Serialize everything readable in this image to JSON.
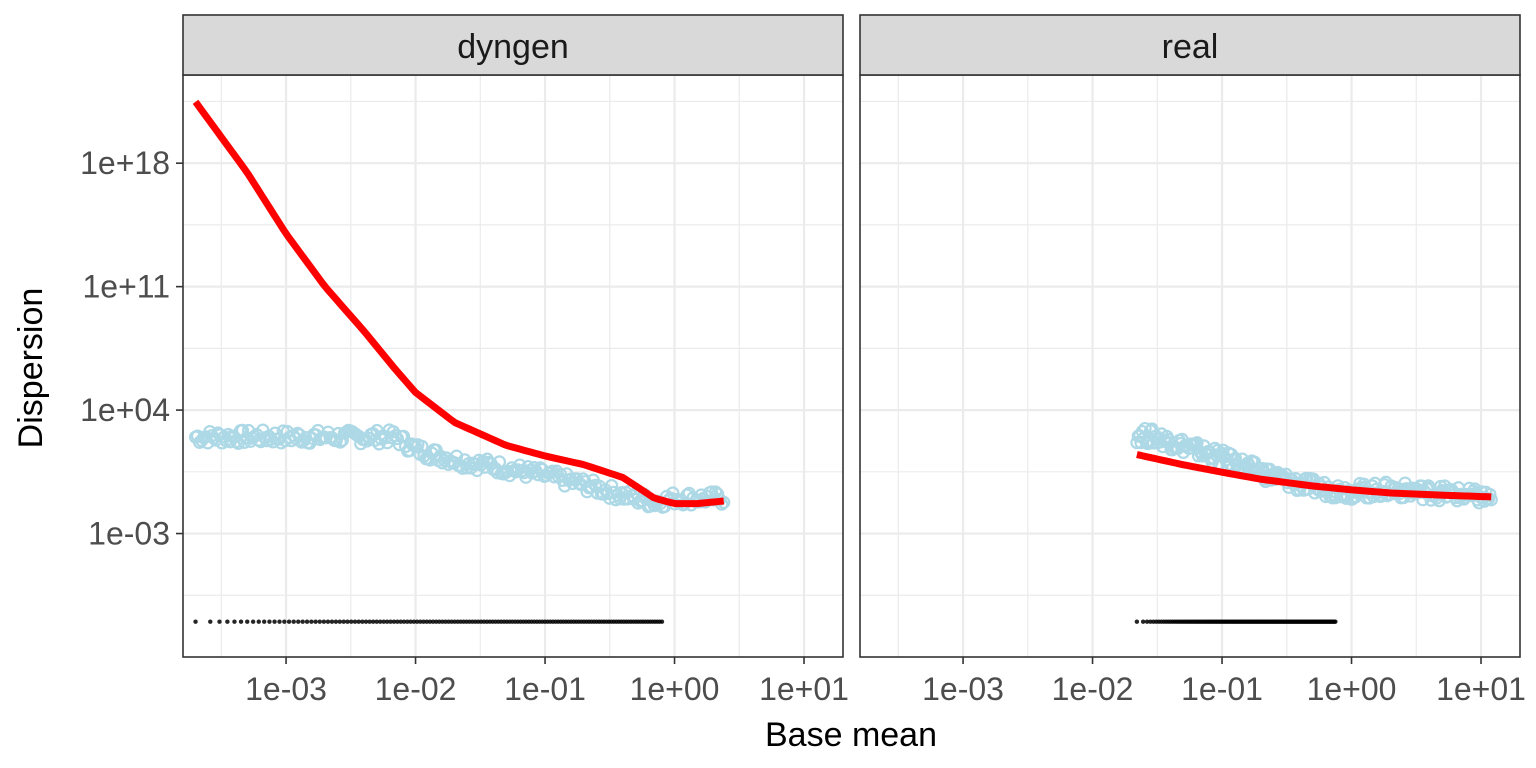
{
  "chart_data": {
    "type": "scatter",
    "xlabel": "Base mean",
    "ylabel": "Dispersion",
    "x_scale": "log10",
    "y_scale": "log10",
    "grid": true,
    "xlim": [
      0.00016,
      20
    ],
    "ylim": [
      1e-10,
      1e+23
    ],
    "x_ticks": [
      {
        "value": 0.001,
        "label": "1e-03"
      },
      {
        "value": 0.01,
        "label": "1e-02"
      },
      {
        "value": 0.1,
        "label": "1e-01"
      },
      {
        "value": 1,
        "label": "1e+00"
      },
      {
        "value": 10,
        "label": "1e+01"
      }
    ],
    "y_ticks": [
      {
        "value": 0.001,
        "label": "1e-03"
      },
      {
        "value": 10000.0,
        "label": "1e+04"
      },
      {
        "value": 100000000000.0,
        "label": "1e+11"
      },
      {
        "value": 1e+18,
        "label": "1e+18"
      }
    ],
    "colors": {
      "gene_estimate": "#add8e6",
      "fitted_trend": "#ff0000",
      "final_estimate": "#000000",
      "strip_bg": "#d9d9d9",
      "grid": "#ebebeb",
      "panel_border": "#333333"
    },
    "panels": [
      {
        "name": "dyngen",
        "xrange": [
          0.0002,
          2.4
        ],
        "points_gene_estimate": [
          {
            "x": 0.0002,
            "y": 300
          },
          {
            "x": 0.0003,
            "y": 300
          },
          {
            "x": 0.0005,
            "y": 300
          },
          {
            "x": 0.0007,
            "y": 300
          },
          {
            "x": 0.001,
            "y": 300
          },
          {
            "x": 0.002,
            "y": 300
          },
          {
            "x": 0.004,
            "y": 300
          },
          {
            "x": 0.007,
            "y": 300
          },
          {
            "x": 0.01,
            "y": 60
          },
          {
            "x": 0.02,
            "y": 15
          },
          {
            "x": 0.05,
            "y": 5
          },
          {
            "x": 0.1,
            "y": 2
          },
          {
            "x": 0.2,
            "y": 0.6
          },
          {
            "x": 0.4,
            "y": 0.15
          },
          {
            "x": 0.7,
            "y": 0.06
          },
          {
            "x": 1.0,
            "y": 0.1
          },
          {
            "x": 1.5,
            "y": 0.1
          },
          {
            "x": 2.4,
            "y": 0.1
          }
        ],
        "fitted_trend": [
          {
            "x": 0.0002,
            "y": 3e+21
          },
          {
            "x": 0.0005,
            "y": 3e+17
          },
          {
            "x": 0.001,
            "y": 100000000000000.0
          },
          {
            "x": 0.002,
            "y": 100000000000.0
          },
          {
            "x": 0.004,
            "y": 300000000.0
          },
          {
            "x": 0.007,
            "y": 2000000.0
          },
          {
            "x": 0.01,
            "y": 100000.0
          },
          {
            "x": 0.02,
            "y": 2000.0
          },
          {
            "x": 0.05,
            "y": 100
          },
          {
            "x": 0.1,
            "y": 25
          },
          {
            "x": 0.2,
            "y": 8
          },
          {
            "x": 0.4,
            "y": 1.5
          },
          {
            "x": 0.7,
            "y": 0.1
          },
          {
            "x": 1.0,
            "y": 0.05
          },
          {
            "x": 1.5,
            "y": 0.05
          },
          {
            "x": 2.4,
            "y": 0.07
          }
        ],
        "final_estimate_y": 1e-08
      },
      {
        "name": "real",
        "xrange": [
          0.022,
          12
        ],
        "points_gene_estimate": [
          {
            "x": 0.022,
            "y": 400
          },
          {
            "x": 0.03,
            "y": 300
          },
          {
            "x": 0.05,
            "y": 100
          },
          {
            "x": 0.1,
            "y": 20
          },
          {
            "x": 0.2,
            "y": 3
          },
          {
            "x": 0.4,
            "y": 0.6
          },
          {
            "x": 0.7,
            "y": 0.3
          },
          {
            "x": 1.0,
            "y": 0.25
          },
          {
            "x": 2.0,
            "y": 0.3
          },
          {
            "x": 5.0,
            "y": 0.2
          },
          {
            "x": 12,
            "y": 0.1
          }
        ],
        "fitted_trend": [
          {
            "x": 0.022,
            "y": 30
          },
          {
            "x": 0.05,
            "y": 8
          },
          {
            "x": 0.1,
            "y": 3
          },
          {
            "x": 0.2,
            "y": 1.2
          },
          {
            "x": 0.5,
            "y": 0.5
          },
          {
            "x": 1.0,
            "y": 0.3
          },
          {
            "x": 2.0,
            "y": 0.2
          },
          {
            "x": 5.0,
            "y": 0.15
          },
          {
            "x": 12,
            "y": 0.12
          }
        ],
        "final_estimate_y": 1e-08
      }
    ]
  }
}
